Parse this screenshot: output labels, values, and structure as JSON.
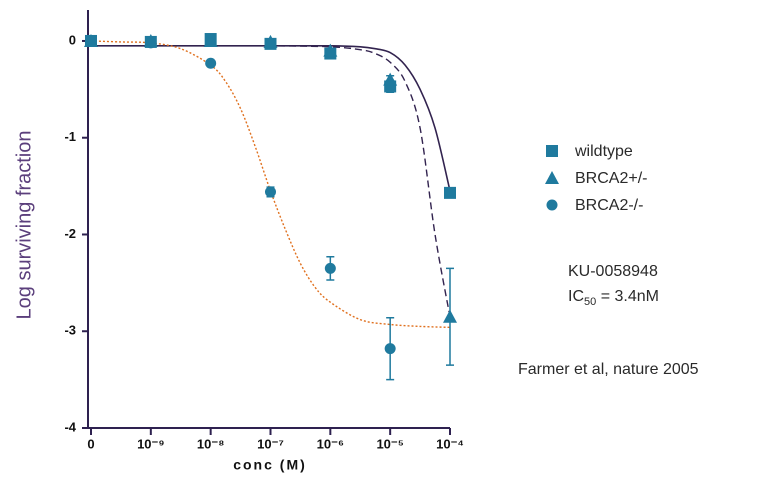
{
  "chart_data": {
    "type": "scatter",
    "y_label": "Log surviving fraction",
    "x_label": "conc (M)",
    "xlim": [
      -10.05,
      -4
    ],
    "xticks": [
      {
        "value": -10,
        "label": "0"
      },
      {
        "value": -9,
        "label": "10⁻⁹"
      },
      {
        "value": -8,
        "label": "10⁻⁸"
      },
      {
        "value": -7,
        "label": "10⁻⁷"
      },
      {
        "value": -6,
        "label": "10⁻⁶"
      },
      {
        "value": -5,
        "label": "10⁻⁵"
      },
      {
        "value": -4,
        "label": "10⁻⁴"
      }
    ],
    "ylim": [
      -4,
      0.32
    ],
    "yticks": [
      0,
      -1,
      -2,
      -3,
      -4
    ],
    "x": [
      -10,
      -9,
      -8,
      -7,
      -6,
      -5,
      -4
    ],
    "series": [
      {
        "name": "wildtype",
        "marker": "square",
        "color": "#1f7a9e",
        "values": [
          0,
          -0.01,
          0.02,
          -0.03,
          -0.13,
          -0.47,
          -1.57
        ],
        "errors": [
          null,
          0.03,
          0.03,
          0.04,
          0.04,
          0.06,
          null
        ]
      },
      {
        "name": "BRCA2+/-",
        "marker": "triangle",
        "color": "#1f7a9e",
        "values": [
          0,
          0,
          0,
          -0.01,
          -0.1,
          -0.4,
          -2.85
        ],
        "errors": [
          null,
          null,
          null,
          null,
          null,
          0.04,
          0.5
        ]
      },
      {
        "name": "BRCA2-/-",
        "marker": "circle",
        "color": "#1f7a9e",
        "values": [
          0,
          -0.02,
          -0.23,
          -1.56,
          -2.35,
          -3.18,
          null
        ],
        "errors": [
          null,
          null,
          null,
          0.05,
          0.12,
          0.32,
          null
        ]
      }
    ],
    "curves": [
      {
        "color": "#32234f",
        "style": "solid",
        "x": [
          -10,
          -9,
          -8,
          -7,
          -6,
          -5.5,
          -5.25,
          -5,
          -4.75,
          -4.5,
          -4.25,
          -4
        ],
        "values": [
          -0.05,
          -0.05,
          -0.05,
          -0.05,
          -0.05,
          -0.06,
          -0.08,
          -0.12,
          -0.25,
          -0.5,
          -0.9,
          -1.55
        ]
      },
      {
        "color": "#32234f",
        "style": "dashed",
        "x": [
          -10,
          -9,
          -8,
          -7,
          -6,
          -5.5,
          -5.25,
          -5,
          -4.75,
          -4.5,
          -4.25,
          -4
        ],
        "values": [
          -0.05,
          -0.05,
          -0.05,
          -0.05,
          -0.06,
          -0.09,
          -0.13,
          -0.22,
          -0.42,
          -0.9,
          -2.0,
          -2.85
        ]
      },
      {
        "color": "#e0701e",
        "style": "dotted",
        "x": [
          -10,
          -9.5,
          -9,
          -8.5,
          -8,
          -7.75,
          -7.5,
          -7.25,
          -7,
          -6.75,
          -6.5,
          -6.25,
          -6,
          -5.5,
          -5,
          -4.5,
          -4
        ],
        "values": [
          0,
          -0.01,
          -0.02,
          -0.08,
          -0.25,
          -0.42,
          -0.7,
          -1.1,
          -1.55,
          -1.95,
          -2.3,
          -2.55,
          -2.7,
          -2.88,
          -2.93,
          -2.95,
          -2.96
        ]
      }
    ],
    "annotations": {
      "compound": "KU-0058948",
      "ic_prefix": "IC",
      "ic_subscript": "50",
      "ic_suffix": " = 3.4nM",
      "citation": "Farmer et al, nature 2005"
    }
  }
}
